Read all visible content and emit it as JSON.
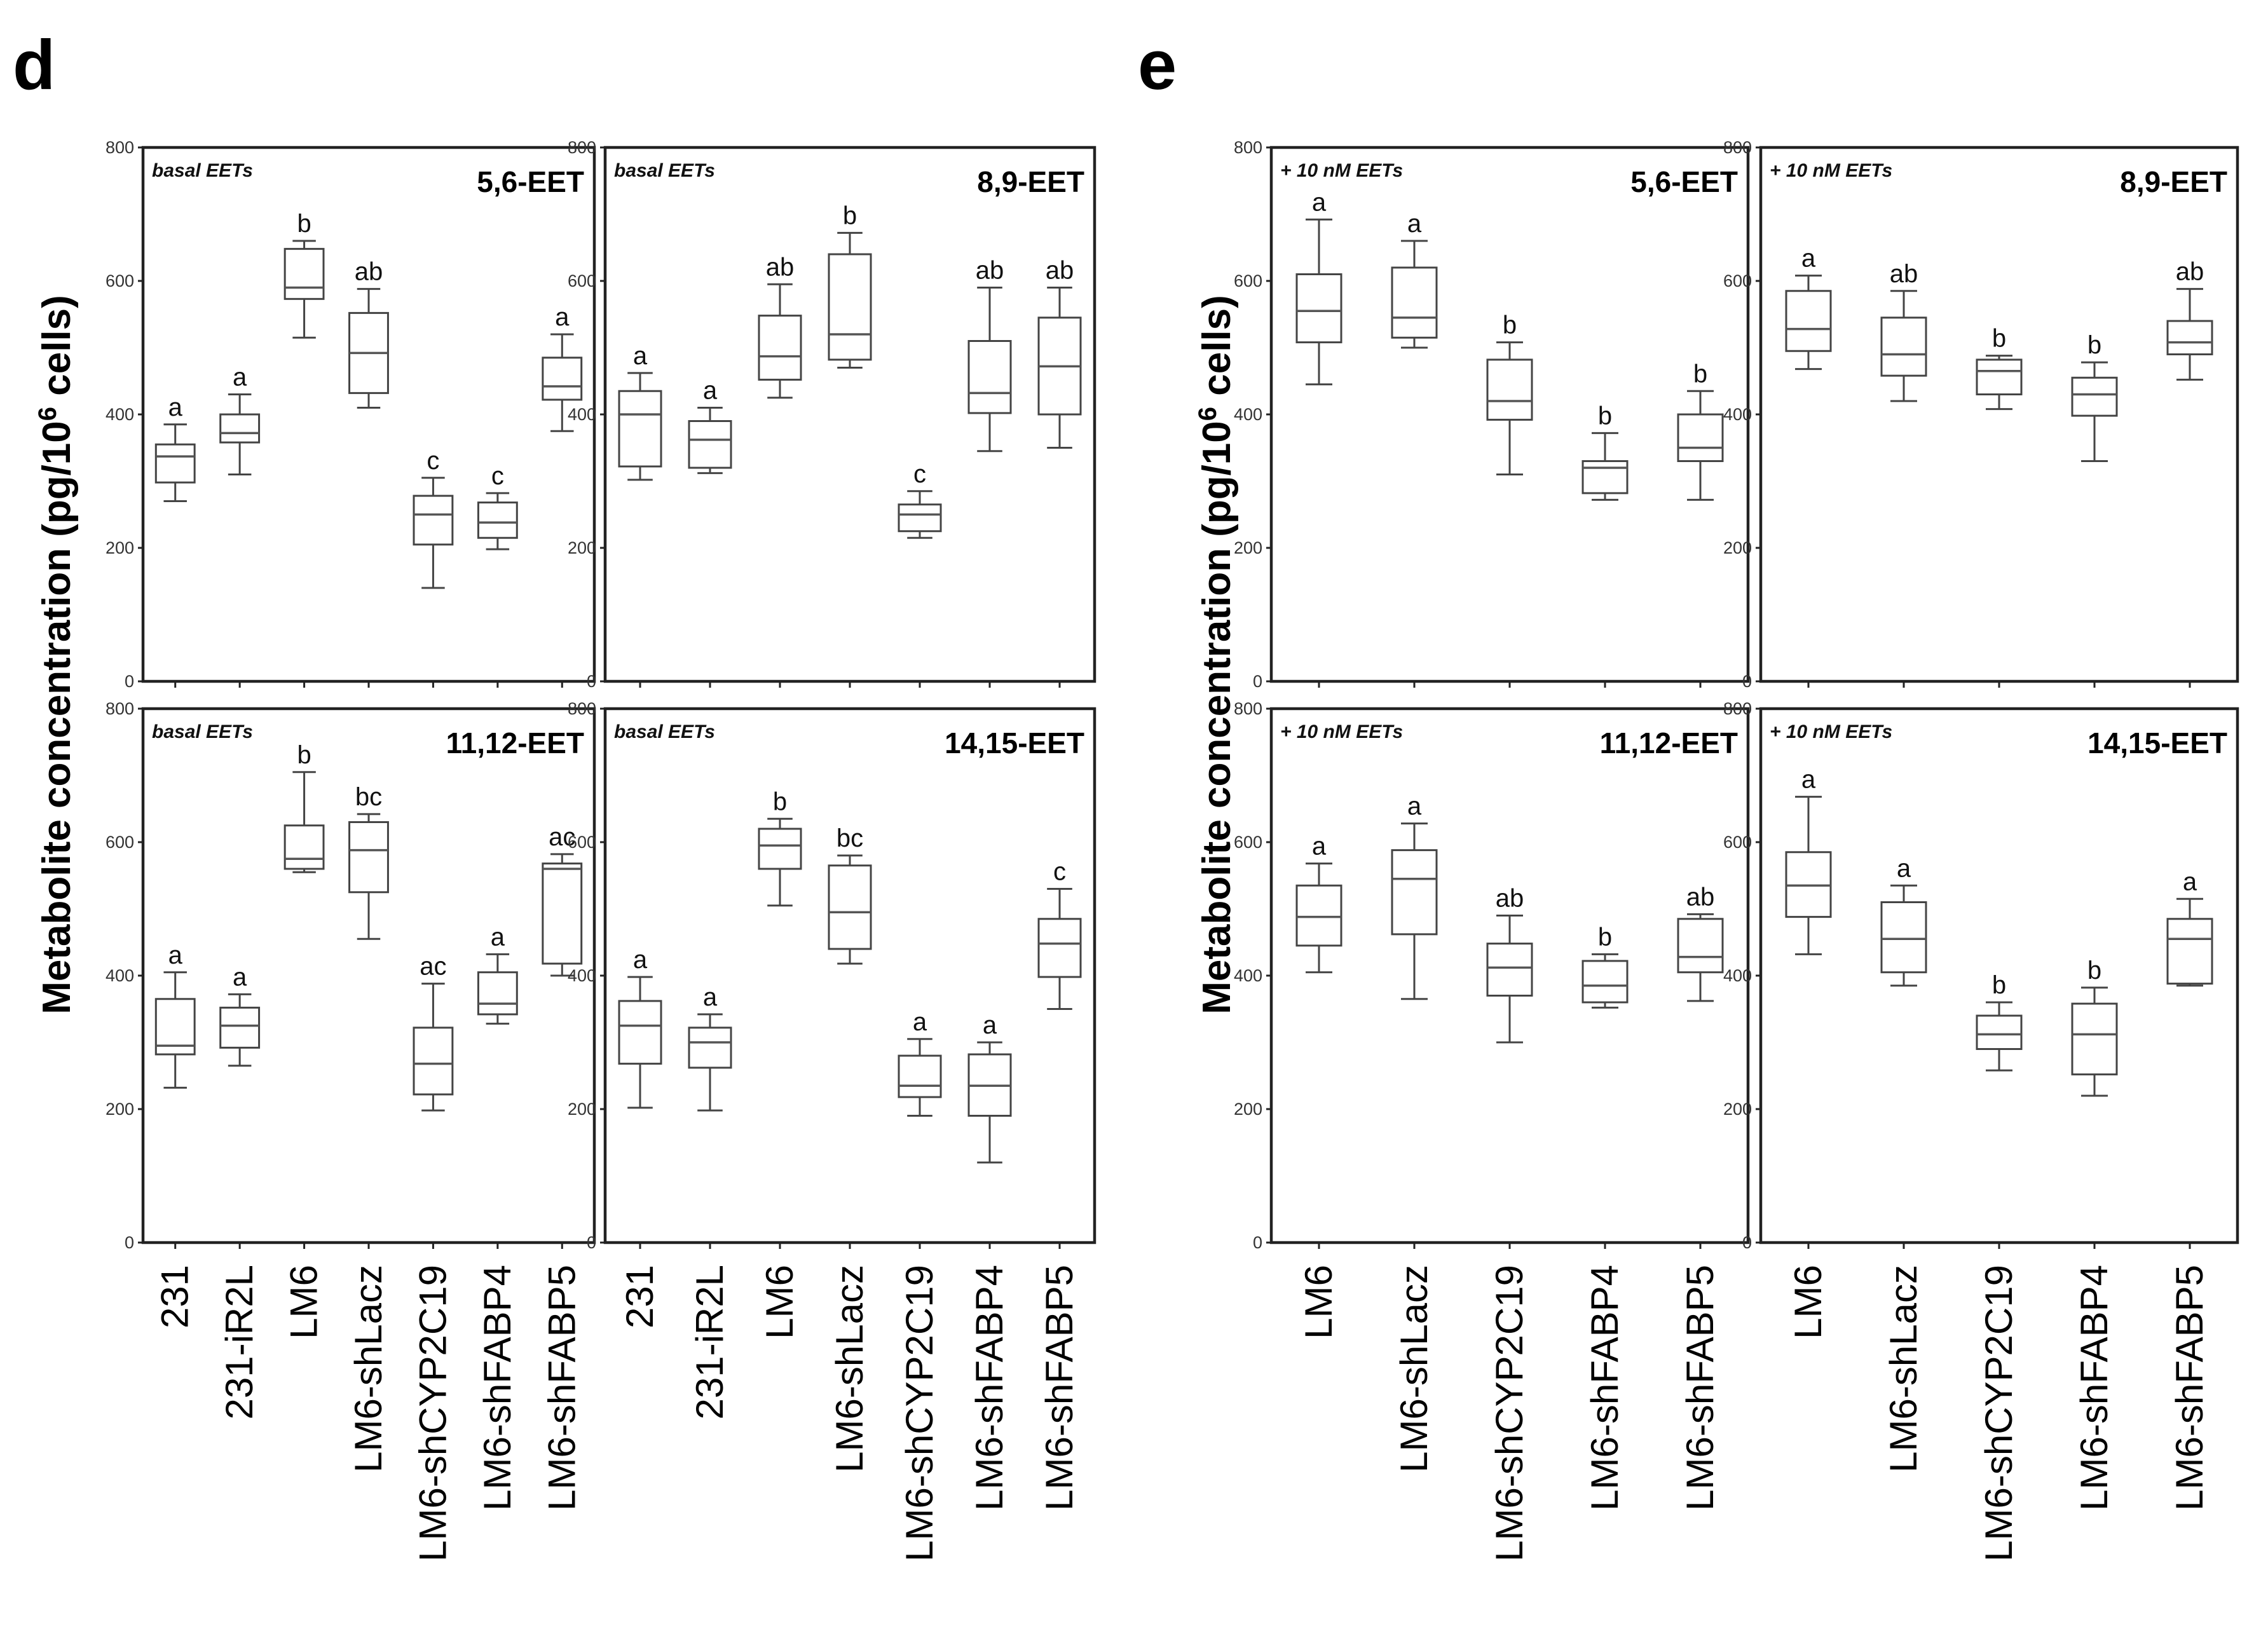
{
  "panels": {
    "d": {
      "letter": "d"
    },
    "e": {
      "letter": "e"
    }
  },
  "y_axis_label": {
    "main": "Metabolite concentration (pg/10",
    "sup": "6",
    "tail": " cells)"
  },
  "chart_data": [
    {
      "type": "boxplot",
      "panel": "d",
      "title": "5,6-EET",
      "subtitle": "basal EETs",
      "ylim": [
        0,
        800
      ],
      "yticks": [
        0,
        200,
        400,
        600,
        800
      ],
      "categories": [
        "231",
        "231-iR2L",
        "LM6",
        "LM6-shLacz",
        "LM6-shCYP2C19",
        "LM6-shFABP4",
        "LM6-shFABP5"
      ],
      "boxes": [
        {
          "min": 270,
          "q1": 298,
          "median": 337,
          "q3": 355,
          "max": 385,
          "label": "a"
        },
        {
          "min": 310,
          "q1": 358,
          "median": 372,
          "q3": 400,
          "max": 430,
          "label": "a"
        },
        {
          "min": 515,
          "q1": 573,
          "median": 590,
          "q3": 648,
          "max": 660,
          "label": "b"
        },
        {
          "min": 410,
          "q1": 432,
          "median": 492,
          "q3": 552,
          "max": 588,
          "label": "ab"
        },
        {
          "min": 140,
          "q1": 205,
          "median": 250,
          "q3": 278,
          "max": 305,
          "label": "c"
        },
        {
          "min": 198,
          "q1": 215,
          "median": 238,
          "q3": 268,
          "max": 282,
          "label": "c"
        },
        {
          "min": 375,
          "q1": 422,
          "median": 442,
          "q3": 485,
          "max": 520,
          "label": "a"
        }
      ]
    },
    {
      "type": "boxplot",
      "panel": "d",
      "title": "8,9-EET",
      "subtitle": "basal EETs",
      "ylim": [
        0,
        800
      ],
      "yticks": [
        0,
        200,
        400,
        600,
        800
      ],
      "categories": [
        "231",
        "231-iR2L",
        "LM6",
        "LM6-shLacz",
        "LM6-shCYP2C19",
        "LM6-shFABP4",
        "LM6-shFABP5"
      ],
      "boxes": [
        {
          "min": 302,
          "q1": 322,
          "median": 400,
          "q3": 435,
          "max": 462,
          "label": "a"
        },
        {
          "min": 312,
          "q1": 320,
          "median": 362,
          "q3": 390,
          "max": 410,
          "label": "a"
        },
        {
          "min": 425,
          "q1": 452,
          "median": 487,
          "q3": 548,
          "max": 595,
          "label": "ab"
        },
        {
          "min": 470,
          "q1": 482,
          "median": 520,
          "q3": 640,
          "max": 672,
          "label": "b"
        },
        {
          "min": 215,
          "q1": 225,
          "median": 250,
          "q3": 265,
          "max": 285,
          "label": "c"
        },
        {
          "min": 345,
          "q1": 402,
          "median": 432,
          "q3": 510,
          "max": 590,
          "label": "ab"
        },
        {
          "min": 350,
          "q1": 400,
          "median": 472,
          "q3": 545,
          "max": 590,
          "label": "ab"
        }
      ]
    },
    {
      "type": "boxplot",
      "panel": "d",
      "title": "11,12-EET",
      "subtitle": "basal EETs",
      "ylim": [
        0,
        800
      ],
      "yticks": [
        0,
        200,
        400,
        600,
        800
      ],
      "categories": [
        "231",
        "231-iR2L",
        "LM6",
        "LM6-shLacz",
        "LM6-shCYP2C19",
        "LM6-shFABP4",
        "LM6-shFABP5"
      ],
      "boxes": [
        {
          "min": 232,
          "q1": 282,
          "median": 295,
          "q3": 365,
          "max": 405,
          "label": "a"
        },
        {
          "min": 265,
          "q1": 292,
          "median": 325,
          "q3": 352,
          "max": 372,
          "label": "a"
        },
        {
          "min": 555,
          "q1": 560,
          "median": 575,
          "q3": 625,
          "max": 705,
          "label": "b"
        },
        {
          "min": 455,
          "q1": 525,
          "median": 588,
          "q3": 630,
          "max": 642,
          "label": "bc"
        },
        {
          "min": 198,
          "q1": 222,
          "median": 268,
          "q3": 322,
          "max": 388,
          "label": "ac"
        },
        {
          "min": 328,
          "q1": 342,
          "median": 358,
          "q3": 405,
          "max": 432,
          "label": "a"
        },
        {
          "min": 400,
          "q1": 418,
          "median": 560,
          "q3": 568,
          "max": 582,
          "label": "ac"
        }
      ]
    },
    {
      "type": "boxplot",
      "panel": "d",
      "title": "14,15-EET",
      "subtitle": "basal EETs",
      "ylim": [
        0,
        800
      ],
      "yticks": [
        0,
        200,
        400,
        600,
        800
      ],
      "categories": [
        "231",
        "231-iR2L",
        "LM6",
        "LM6-shLacz",
        "LM6-shCYP2C19",
        "LM6-shFABP4",
        "LM6-shFABP5"
      ],
      "boxes": [
        {
          "min": 202,
          "q1": 268,
          "median": 325,
          "q3": 362,
          "max": 398,
          "label": "a"
        },
        {
          "min": 198,
          "q1": 262,
          "median": 300,
          "q3": 322,
          "max": 342,
          "label": "a"
        },
        {
          "min": 505,
          "q1": 560,
          "median": 595,
          "q3": 620,
          "max": 635,
          "label": "b"
        },
        {
          "min": 418,
          "q1": 440,
          "median": 495,
          "q3": 565,
          "max": 580,
          "label": "bc"
        },
        {
          "min": 190,
          "q1": 218,
          "median": 235,
          "q3": 280,
          "max": 305,
          "label": "a"
        },
        {
          "min": 120,
          "q1": 190,
          "median": 235,
          "q3": 282,
          "max": 300,
          "label": "a"
        },
        {
          "min": 350,
          "q1": 398,
          "median": 448,
          "q3": 485,
          "max": 530,
          "label": "c"
        }
      ]
    },
    {
      "type": "boxplot",
      "panel": "e",
      "title": "5,6-EET",
      "subtitle": "+ 10 nM EETs",
      "ylim": [
        0,
        800
      ],
      "yticks": [
        0,
        200,
        400,
        600,
        800
      ],
      "categories": [
        "LM6",
        "LM6-shLacz",
        "LM6-shCYP2C19",
        "LM6-shFABP4",
        "LM6-shFABP5"
      ],
      "boxes": [
        {
          "min": 445,
          "q1": 508,
          "median": 555,
          "q3": 610,
          "max": 692,
          "label": "a"
        },
        {
          "min": 500,
          "q1": 515,
          "median": 545,
          "q3": 620,
          "max": 660,
          "label": "a"
        },
        {
          "min": 310,
          "q1": 392,
          "median": 420,
          "q3": 482,
          "max": 508,
          "label": "b"
        },
        {
          "min": 272,
          "q1": 282,
          "median": 320,
          "q3": 330,
          "max": 372,
          "label": "b"
        },
        {
          "min": 272,
          "q1": 330,
          "median": 350,
          "q3": 400,
          "max": 435,
          "label": "b"
        }
      ]
    },
    {
      "type": "boxplot",
      "panel": "e",
      "title": "8,9-EET",
      "subtitle": "+ 10 nM EETs",
      "ylim": [
        0,
        800
      ],
      "yticks": [
        0,
        200,
        400,
        600,
        800
      ],
      "categories": [
        "LM6",
        "LM6-shLacz",
        "LM6-shCYP2C19",
        "LM6-shFABP4",
        "LM6-shFABP5"
      ],
      "boxes": [
        {
          "min": 468,
          "q1": 495,
          "median": 528,
          "q3": 585,
          "max": 608,
          "label": "a"
        },
        {
          "min": 420,
          "q1": 458,
          "median": 490,
          "q3": 545,
          "max": 585,
          "label": "ab"
        },
        {
          "min": 408,
          "q1": 430,
          "median": 465,
          "q3": 482,
          "max": 488,
          "label": "b"
        },
        {
          "min": 330,
          "q1": 398,
          "median": 430,
          "q3": 455,
          "max": 478,
          "label": "b"
        },
        {
          "min": 452,
          "q1": 490,
          "median": 508,
          "q3": 540,
          "max": 588,
          "label": "ab"
        }
      ]
    },
    {
      "type": "boxplot",
      "panel": "e",
      "title": "11,12-EET",
      "subtitle": "+ 10 nM EETs",
      "ylim": [
        0,
        800
      ],
      "yticks": [
        0,
        200,
        400,
        600,
        800
      ],
      "categories": [
        "LM6",
        "LM6-shLacz",
        "LM6-shCYP2C19",
        "LM6-shFABP4",
        "LM6-shFABP5"
      ],
      "boxes": [
        {
          "min": 405,
          "q1": 445,
          "median": 488,
          "q3": 535,
          "max": 568,
          "label": "a"
        },
        {
          "min": 365,
          "q1": 462,
          "median": 545,
          "q3": 588,
          "max": 628,
          "label": "a"
        },
        {
          "min": 300,
          "q1": 370,
          "median": 412,
          "q3": 448,
          "max": 490,
          "label": "ab"
        },
        {
          "min": 352,
          "q1": 360,
          "median": 385,
          "q3": 422,
          "max": 432,
          "label": "b"
        },
        {
          "min": 362,
          "q1": 405,
          "median": 428,
          "q3": 485,
          "max": 492,
          "label": "ab"
        }
      ]
    },
    {
      "type": "boxplot",
      "panel": "e",
      "title": "14,15-EET",
      "subtitle": "+ 10 nM EETs",
      "ylim": [
        0,
        800
      ],
      "yticks": [
        0,
        200,
        400,
        600,
        800
      ],
      "categories": [
        "LM6",
        "LM6-shLacz",
        "LM6-shCYP2C19",
        "LM6-shFABP4",
        "LM6-shFABP5"
      ],
      "boxes": [
        {
          "min": 432,
          "q1": 488,
          "median": 535,
          "q3": 585,
          "max": 668,
          "label": "a"
        },
        {
          "min": 385,
          "q1": 405,
          "median": 455,
          "q3": 510,
          "max": 535,
          "label": "a"
        },
        {
          "min": 258,
          "q1": 290,
          "median": 312,
          "q3": 340,
          "max": 360,
          "label": "b"
        },
        {
          "min": 220,
          "q1": 252,
          "median": 312,
          "q3": 358,
          "max": 382,
          "label": "b"
        },
        {
          "min": 385,
          "q1": 388,
          "median": 455,
          "q3": 485,
          "max": 515,
          "label": "a"
        }
      ]
    }
  ]
}
